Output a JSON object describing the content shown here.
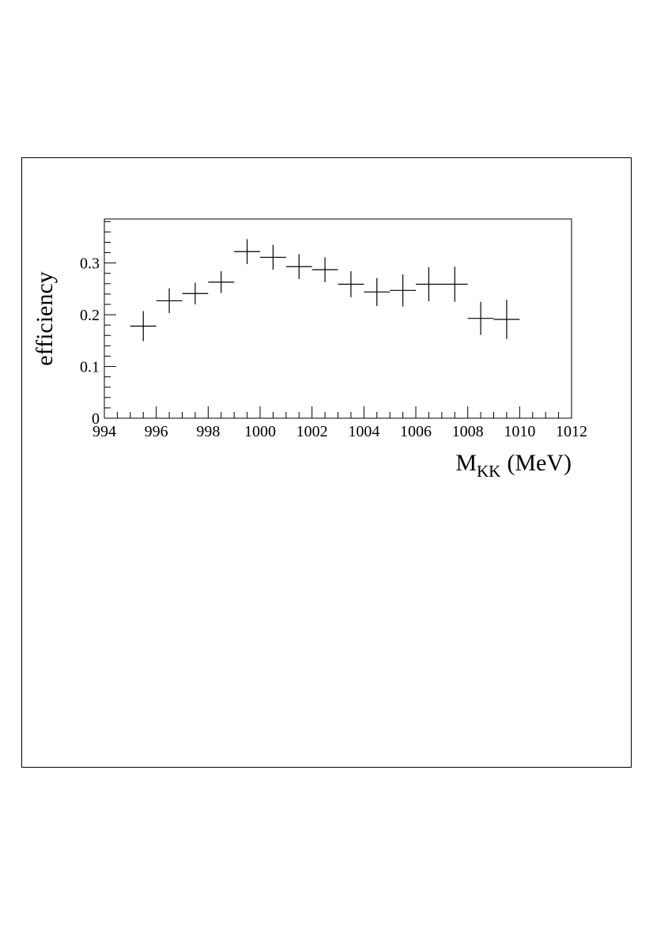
{
  "chart_data": {
    "type": "scatter",
    "title": "",
    "xlabel": "M",
    "xlabel_sub": "KK",
    "xlabel_unit": "(MeV)",
    "ylabel": "efficiency",
    "xlim": [
      994,
      1012
    ],
    "ylim": [
      0,
      0.385
    ],
    "x_ticks": [
      "994",
      "996",
      "998",
      "1000",
      "1002",
      "1004",
      "1006",
      "1008",
      "1010",
      "1012"
    ],
    "y_ticks": [
      "0",
      "0.1",
      "0.2",
      "0.3"
    ],
    "x_minor_step": 0.5,
    "y_minor_step": 0.02,
    "grid": false,
    "legend": "none",
    "marker_color": "#000000",
    "points": [
      {
        "x": 995.5,
        "y": 0.178,
        "xerr": 0.5,
        "yerr": 0.029
      },
      {
        "x": 996.5,
        "y": 0.227,
        "xerr": 0.5,
        "yerr": 0.024
      },
      {
        "x": 997.5,
        "y": 0.241,
        "xerr": 0.5,
        "yerr": 0.021
      },
      {
        "x": 998.5,
        "y": 0.263,
        "xerr": 0.5,
        "yerr": 0.021
      },
      {
        "x": 999.5,
        "y": 0.322,
        "xerr": 0.5,
        "yerr": 0.024
      },
      {
        "x": 1000.5,
        "y": 0.311,
        "xerr": 0.5,
        "yerr": 0.024
      },
      {
        "x": 1001.5,
        "y": 0.293,
        "xerr": 0.5,
        "yerr": 0.024
      },
      {
        "x": 1002.5,
        "y": 0.287,
        "xerr": 0.5,
        "yerr": 0.024
      },
      {
        "x": 1003.5,
        "y": 0.259,
        "xerr": 0.5,
        "yerr": 0.025
      },
      {
        "x": 1004.5,
        "y": 0.244,
        "xerr": 0.5,
        "yerr": 0.027
      },
      {
        "x": 1005.5,
        "y": 0.247,
        "xerr": 0.5,
        "yerr": 0.031
      },
      {
        "x": 1006.5,
        "y": 0.259,
        "xerr": 0.5,
        "yerr": 0.033
      },
      {
        "x": 1007.5,
        "y": 0.259,
        "xerr": 0.5,
        "yerr": 0.034
      },
      {
        "x": 1008.5,
        "y": 0.193,
        "xerr": 0.5,
        "yerr": 0.032
      },
      {
        "x": 1009.5,
        "y": 0.191,
        "xerr": 0.5,
        "yerr": 0.038
      }
    ]
  }
}
